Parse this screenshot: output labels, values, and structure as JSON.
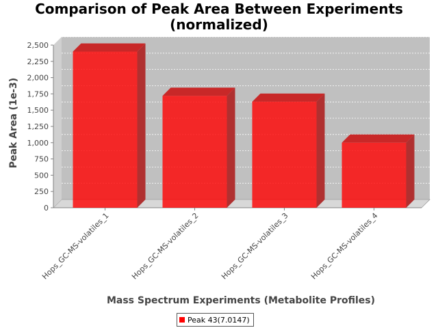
{
  "chart_data": {
    "type": "bar",
    "title_lines": [
      "Comparison of Peak Area Between Experiments",
      "(normalized)"
    ],
    "xlabel": "Mass Spectrum Experiments (Metabolite Profiles)",
    "ylabel": "Peak Area (1e-3)",
    "categories": [
      "Hops_GC-MS-volatiles_1",
      "Hops_GC-MS-volatiles_2",
      "Hops_GC-MS-volatiles_3",
      "Hops_GC-MS-volatiles_4"
    ],
    "series": [
      {
        "name": "Peak 43(7.0147)",
        "values": [
          2400,
          1720,
          1630,
          1000
        ]
      }
    ],
    "ylim": [
      0,
      2500
    ],
    "yticks": [
      0,
      250,
      500,
      750,
      1000,
      1250,
      1500,
      1750,
      2000,
      2250,
      2500
    ],
    "ytick_labels": [
      "0",
      "250",
      "500",
      "750",
      "1,000",
      "1,250",
      "1,500",
      "1,750",
      "2,000",
      "2,250",
      "2,500"
    ],
    "grid": true,
    "legend_position": "bottom",
    "style": "3d",
    "colors": {
      "bar": "#ff0000",
      "plot_background": "#c0c0c0",
      "grid": "#ffffff"
    }
  }
}
